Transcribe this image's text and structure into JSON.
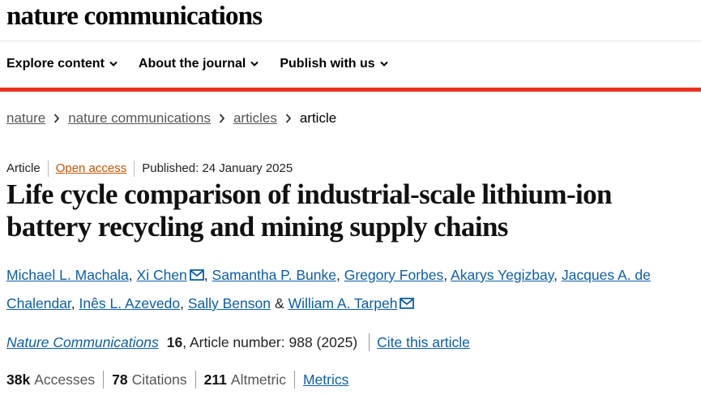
{
  "header": {
    "logo": "nature communications",
    "nav": [
      "Explore content",
      "About the journal",
      "Publish with us"
    ]
  },
  "breadcrumb": [
    "nature",
    "nature communications",
    "articles",
    "article"
  ],
  "article": {
    "type": "Article",
    "access": "Open access",
    "published": "Published: 24 January 2025",
    "title": "Life cycle comparison of industrial-scale lithium-ion battery recycling and mining supply chains",
    "authors": [
      {
        "name": "Michael L. Machala",
        "sep": ","
      },
      {
        "name": "Xi Chen",
        "sep": ",",
        "email": true
      },
      {
        "name": "Samantha P. Bunke",
        "sep": ","
      },
      {
        "name": "Gregory Forbes",
        "sep": ","
      },
      {
        "name": "Akarys Yegizbay",
        "sep": ","
      },
      {
        "name": "Jacques A. de Chalendar",
        "sep": ","
      },
      {
        "name": "Inês L. Azevedo",
        "sep": ","
      },
      {
        "name": "Sally Benson",
        "sep": "&"
      },
      {
        "name": "William A. Tarpeh",
        "email": true
      }
    ],
    "journal": "Nature Communications",
    "volume": "16",
    "article_number": ", Article number: 988 (2025)",
    "cite": "Cite this article"
  },
  "metrics": [
    {
      "value": "38k",
      "label": "Accesses"
    },
    {
      "value": "78",
      "label": "Citations"
    },
    {
      "value": "211",
      "label": "Altmetric"
    }
  ],
  "metrics_link": "Metrics"
}
